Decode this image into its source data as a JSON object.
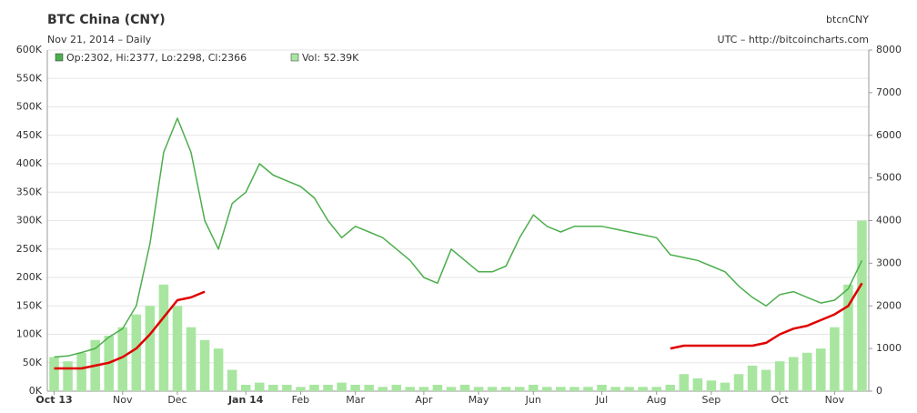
{
  "chart_data": {
    "type": "line",
    "title": "BTC China (CNY)",
    "subtitle": "Nov 21, 2014 – Daily",
    "symbol": "btcnCNY",
    "source": "UTC – http://bitcoincharts.com",
    "legend_price": "Op:2302, Hi:2377, Lo:2298, Cl:2366",
    "legend_volume": "Vol: 52.39K",
    "categories": [
      "Oct 13",
      null,
      null,
      null,
      null,
      "Nov",
      null,
      null,
      null,
      "Dec",
      null,
      null,
      null,
      null,
      "Jan 14",
      null,
      null,
      null,
      "Feb",
      null,
      null,
      null,
      "Mar",
      null,
      null,
      null,
      null,
      "Apr",
      null,
      null,
      null,
      "May",
      null,
      null,
      null,
      "Jun",
      null,
      null,
      null,
      null,
      "Jul",
      null,
      null,
      null,
      "Aug",
      null,
      null,
      null,
      "Sep",
      null,
      null,
      null,
      null,
      "Oct",
      null,
      null,
      null,
      "Nov",
      null,
      null
    ],
    "series": [
      {
        "name": "Volume",
        "type": "bar",
        "axis": "y2",
        "color": "#a8e6a0",
        "values": [
          800,
          700,
          900,
          1200,
          1300,
          1500,
          1800,
          2000,
          2500,
          2000,
          1500,
          1200,
          1000,
          500,
          150,
          200,
          150,
          150,
          100,
          150,
          150,
          200,
          150,
          150,
          100,
          150,
          100,
          100,
          150,
          100,
          150,
          100,
          100,
          100,
          100,
          150,
          100,
          100,
          100,
          100,
          150,
          100,
          100,
          100,
          100,
          150,
          400,
          300,
          250,
          200,
          400,
          600,
          500,
          700,
          800,
          900,
          1000,
          1500,
          2500,
          4000
        ]
      },
      {
        "name": "Price",
        "type": "line",
        "color": "#4cae4c",
        "values": [
          60000,
          62000,
          68000,
          75000,
          95000,
          110000,
          150000,
          260000,
          420000,
          480000,
          420000,
          300000,
          250000,
          330000,
          350000,
          400000,
          380000,
          370000,
          360000,
          340000,
          300000,
          270000,
          290000,
          280000,
          270000,
          250000,
          230000,
          200000,
          190000,
          250000,
          230000,
          210000,
          210000,
          220000,
          270000,
          310000,
          290000,
          280000,
          290000,
          290000,
          290000,
          285000,
          280000,
          275000,
          270000,
          240000,
          235000,
          230000,
          220000,
          210000,
          185000,
          165000,
          150000,
          170000,
          175000,
          165000,
          155000,
          160000,
          180000,
          230000
        ]
      },
      {
        "name": "Average",
        "type": "line",
        "color": "#e00000",
        "values": [
          40000,
          40000,
          40000,
          45000,
          50000,
          60000,
          75000,
          100000,
          130000,
          160000,
          165000,
          175000,
          null,
          null,
          null,
          null,
          null,
          null,
          null,
          null,
          null,
          null,
          null,
          null,
          null,
          null,
          null,
          null,
          null,
          null,
          null,
          null,
          null,
          null,
          null,
          null,
          null,
          null,
          null,
          null,
          null,
          null,
          null,
          null,
          null,
          75000,
          80000,
          80000,
          80000,
          80000,
          80000,
          80000,
          85000,
          100000,
          110000,
          115000,
          125000,
          135000,
          150000,
          190000
        ]
      }
    ],
    "ylim": [
      0,
      600000
    ],
    "yticks": [
      {
        "value": 0,
        "label": "0K"
      },
      {
        "value": 50000,
        "label": "50K"
      },
      {
        "value": 100000,
        "label": "100K"
      },
      {
        "value": 150000,
        "label": "150K"
      },
      {
        "value": 200000,
        "label": "200K"
      },
      {
        "value": 250000,
        "label": "250K"
      },
      {
        "value": 300000,
        "label": "300K"
      },
      {
        "value": 350000,
        "label": "350K"
      },
      {
        "value": 400000,
        "label": "400K"
      },
      {
        "value": 450000,
        "label": "450K"
      },
      {
        "value": 500000,
        "label": "500K"
      },
      {
        "value": 550000,
        "label": "550K"
      },
      {
        "value": 600000,
        "label": "600K"
      }
    ],
    "y2lim": [
      0,
      8000
    ],
    "y2ticks": [
      0,
      1000,
      2000,
      3000,
      4000,
      5000,
      6000,
      7000,
      8000
    ],
    "grid": true
  }
}
